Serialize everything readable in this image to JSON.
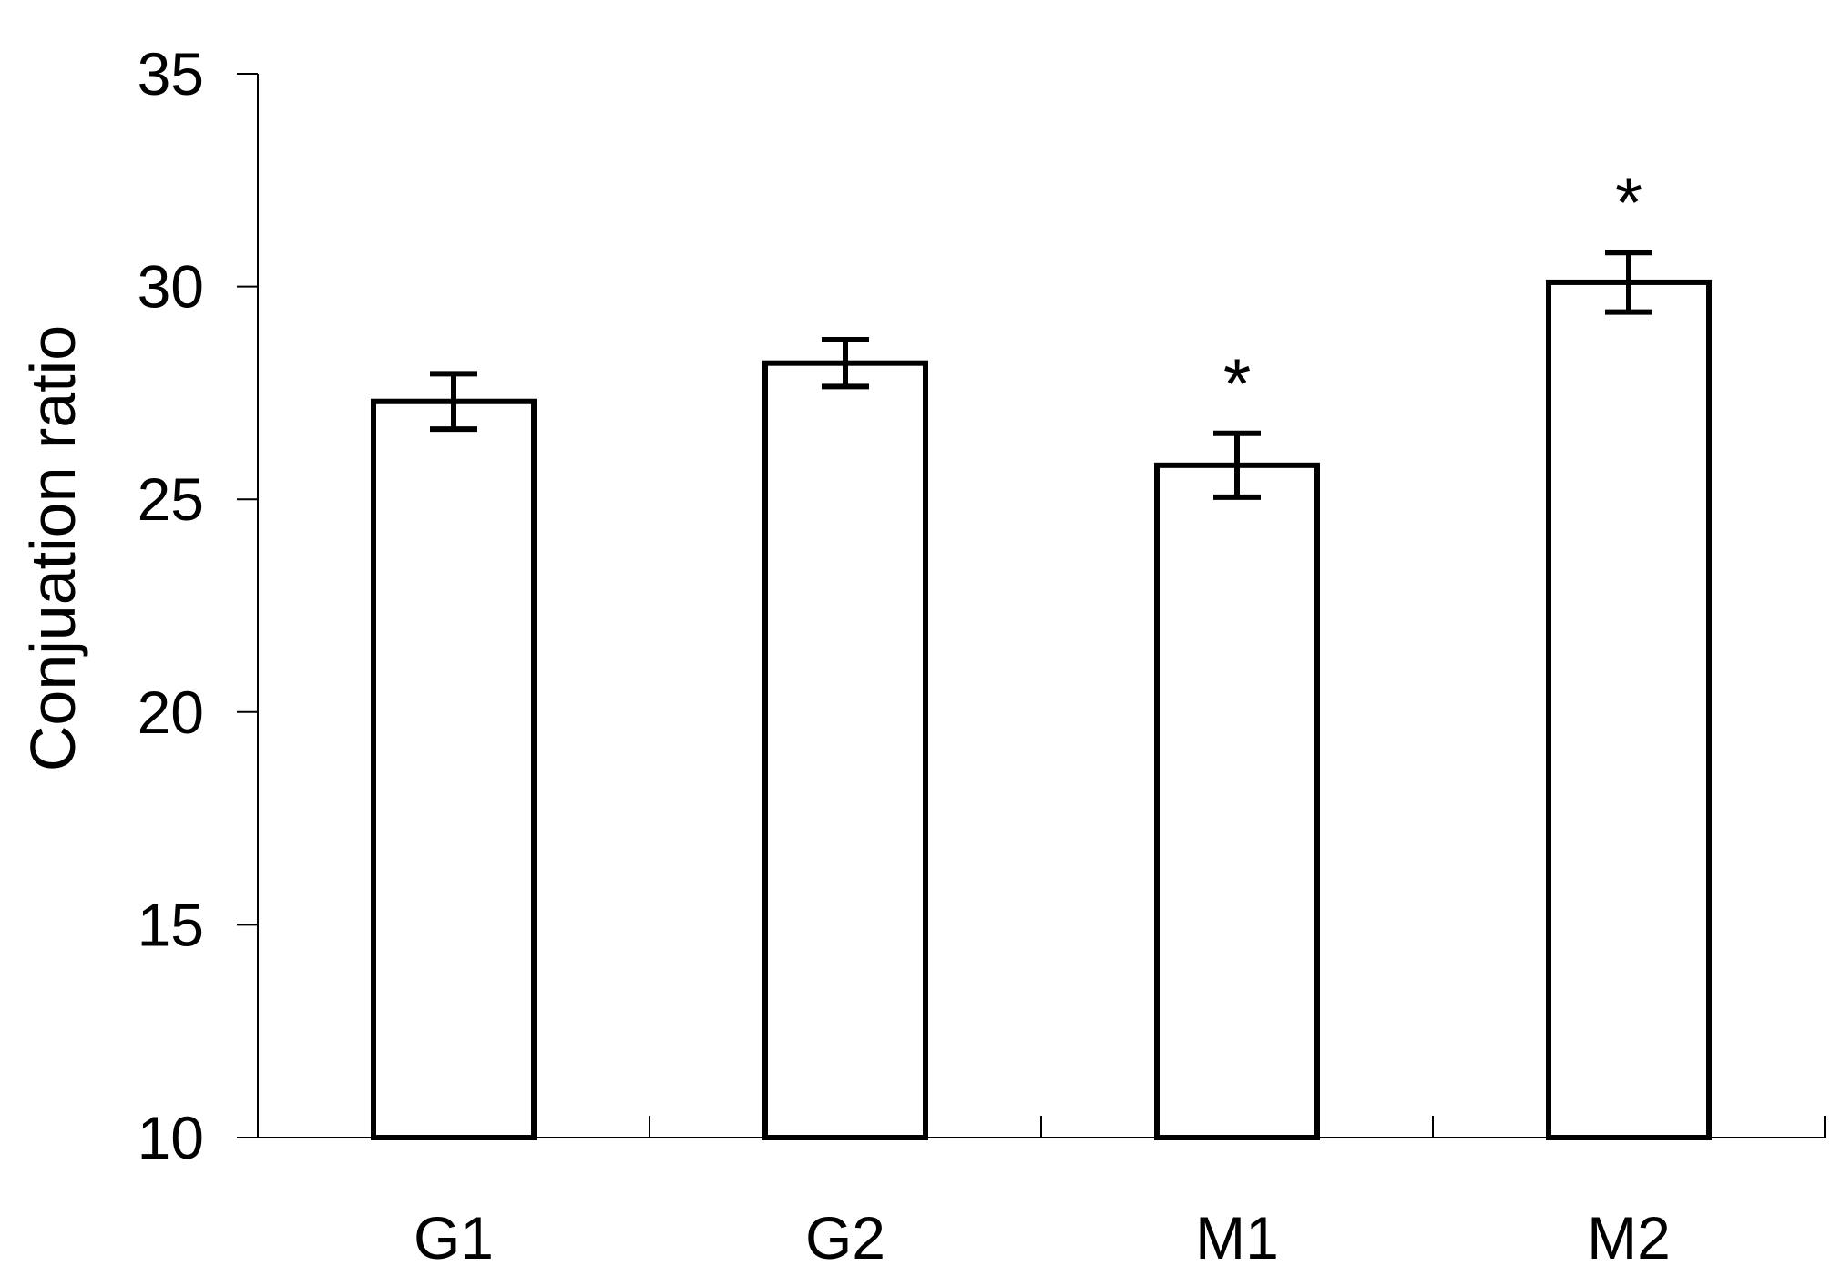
{
  "chart_data": {
    "type": "bar",
    "title": "",
    "xlabel": "",
    "ylabel": "Conjuation ratio",
    "ylim": [
      10,
      35
    ],
    "yticks": [
      10,
      15,
      20,
      25,
      30,
      35
    ],
    "grid": false,
    "categories": [
      "G1",
      "G2",
      "M1",
      "M2"
    ],
    "series": [
      {
        "values": [
          27.3,
          28.2,
          25.8,
          30.1
        ],
        "errors": [
          0.65,
          0.55,
          0.75,
          0.7
        ]
      }
    ],
    "annotations": [
      "",
      "",
      "*",
      "*"
    ],
    "colors": {
      "bar_fill": "#ffffff",
      "bar_stroke": "#000000",
      "axis": "#000000"
    }
  }
}
